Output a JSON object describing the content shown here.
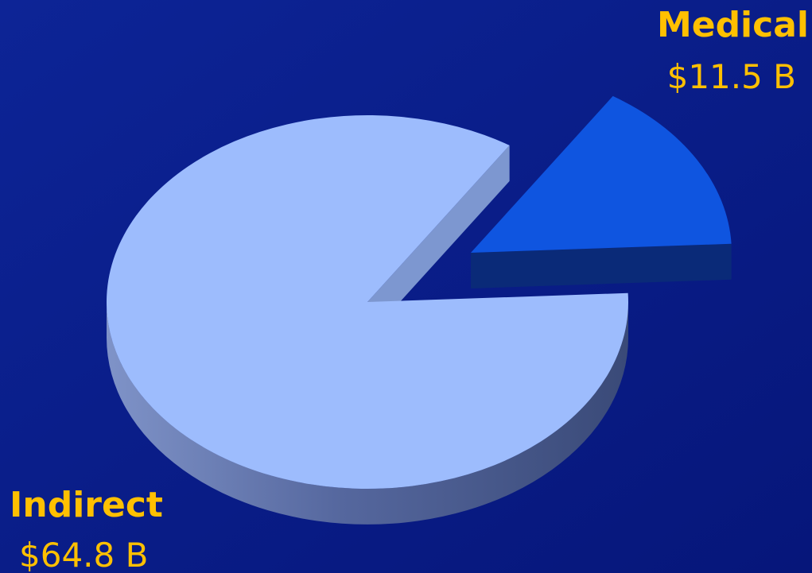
{
  "chart_data": {
    "type": "pie",
    "title": "",
    "slices": [
      {
        "name": "Indirect",
        "value_label": "$64.8 B",
        "value": 64.8,
        "color": "#9dbcfd"
      },
      {
        "name": "Medical",
        "value_label": "$11.5 B",
        "value": 11.5,
        "color": "#0f55e0"
      }
    ],
    "style": "3d-exploded",
    "label_color": "#ffc000",
    "background_color": "#0a1f8a"
  }
}
